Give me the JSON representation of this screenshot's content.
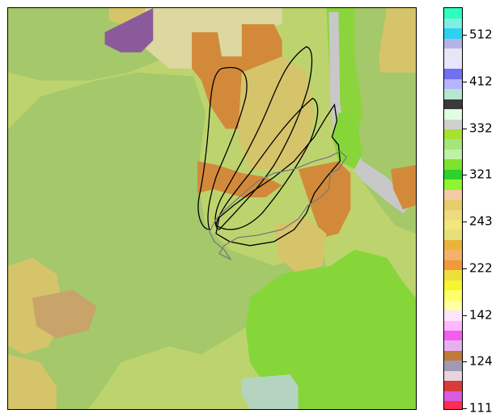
{
  "legend": {
    "colors": [
      "#ff2d4f",
      "#d65ce0",
      "#d93a3a",
      "#e8d4dc",
      "#a29ab4",
      "#c07a3c",
      "#e6b0f0",
      "#f55cf0",
      "#ffb8ff",
      "#ffe4ff",
      "#ffffa4",
      "#ffff6a",
      "#f5f531",
      "#f0de3c",
      "#f09a3c",
      "#f5b06a",
      "#eab43a",
      "#e6e07a",
      "#f5e67a",
      "#f0da7e",
      "#e6cc6a",
      "#f5caa4",
      "#8ef531",
      "#2dd22d",
      "#7fe22d",
      "#bff0a4",
      "#a4e67a",
      "#a4e131",
      "#d0d0d0",
      "#e0ffe0",
      "#3a3a3a",
      "#b4e6d0",
      "#b4b4ff",
      "#7070f0",
      "#e6e6ff",
      "#e6e6f5",
      "#b4b4e6",
      "#2dd2f0",
      "#7ff0e0",
      "#2dffbf"
    ],
    "tick_labels": [
      "111",
      "124",
      "142",
      "222",
      "243",
      "321",
      "332",
      "412",
      "512"
    ]
  },
  "map": {
    "land_cover_colors": {
      "base": "#bdd46e",
      "forest": "#a4c86a",
      "grassland": "#86d63a",
      "bright_green": "#8cd43c",
      "orange_brown": "#d28a3a",
      "tan": "#d6c46a",
      "pale_beige": "#dcd8a0",
      "purple": "#8a5a9a",
      "grey_urban": "#c8c8c8",
      "light_teal": "#b4d4c0",
      "brown_patch": "#c8a46a"
    },
    "outline_colors": {
      "black": "#000000",
      "grey": "#7a7a7a"
    }
  }
}
